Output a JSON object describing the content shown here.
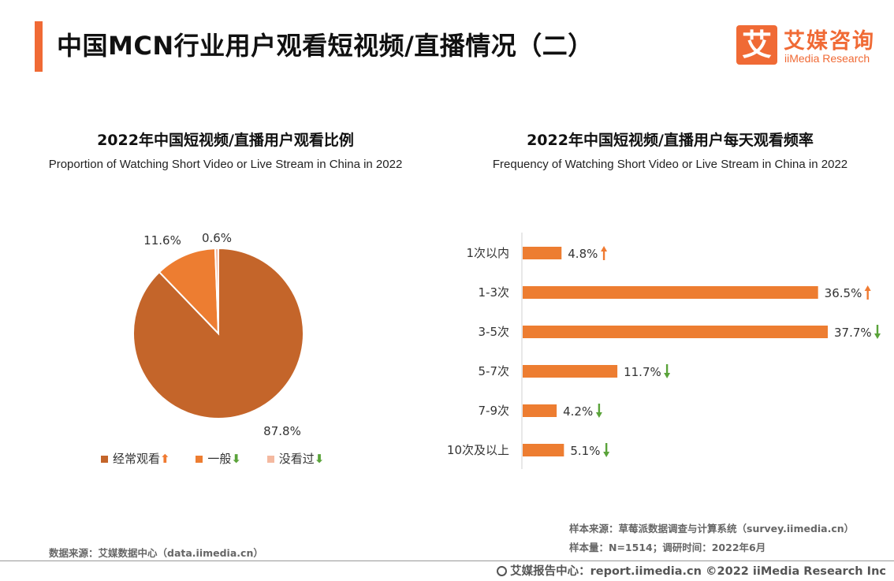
{
  "header": {
    "title": "中国MCN行业用户观看短视频/直播情况（二）",
    "logo_char": "艾",
    "logo_cn": "艾媒咨询",
    "logo_en": "iiMedia Research"
  },
  "colors": {
    "accent": "#f06a35",
    "pie_often": "#c4652a",
    "pie_normal": "#ed7d31",
    "pie_never": "#f4b9a0",
    "bar": "#ed7d31",
    "arrow_up": "#f07b32",
    "arrow_down": "#5aa33a"
  },
  "chart_data": [
    {
      "type": "pie",
      "title": "2022年中国短视频/直播用户观看比例",
      "subtitle": "Proportion of Watching Short Video or Live Stream in China in 2022",
      "categories": [
        "经常观看",
        "一般",
        "没看过"
      ],
      "values": [
        87.8,
        11.6,
        0.6
      ],
      "value_labels": [
        "87.8%",
        "11.6%",
        "0.6%"
      ],
      "trend": [
        "up",
        "down",
        "down"
      ],
      "legend_position": "bottom"
    },
    {
      "type": "bar",
      "orientation": "horizontal",
      "title": "2022年中国短视频/直播用户每天观看频率",
      "subtitle": "Frequency of Watching Short Video or Live Stream in China in 2022",
      "categories": [
        "1次以内",
        "1-3次",
        "3-5次",
        "5-7次",
        "7-9次",
        "10次及以上"
      ],
      "values": [
        4.8,
        36.5,
        37.7,
        11.7,
        4.2,
        5.1
      ],
      "value_labels": [
        "4.8%",
        "36.5%",
        "37.7%",
        "11.7%",
        "4.2%",
        "5.1%"
      ],
      "trend": [
        "up",
        "up",
        "down",
        "down",
        "down",
        "down"
      ],
      "xlim": [
        0,
        40
      ]
    }
  ],
  "legend": {
    "items": [
      {
        "label": "经常观看",
        "arrow": "⬆"
      },
      {
        "label": "一般",
        "arrow": "⬇"
      },
      {
        "label": "没看过",
        "arrow": "⬇"
      }
    ]
  },
  "notes": {
    "data_source": "数据来源：艾媒数据中心（data.iimedia.cn）",
    "sample_source": "样本来源：草莓派数据调查与计算系统（survey.iimedia.cn）",
    "sample_size": "样本量：N=1514；调研时间：2022年6月"
  },
  "footer": {
    "text": "艾媒报告中心：report.iimedia.cn  ©2022  iiMedia Research  Inc"
  }
}
